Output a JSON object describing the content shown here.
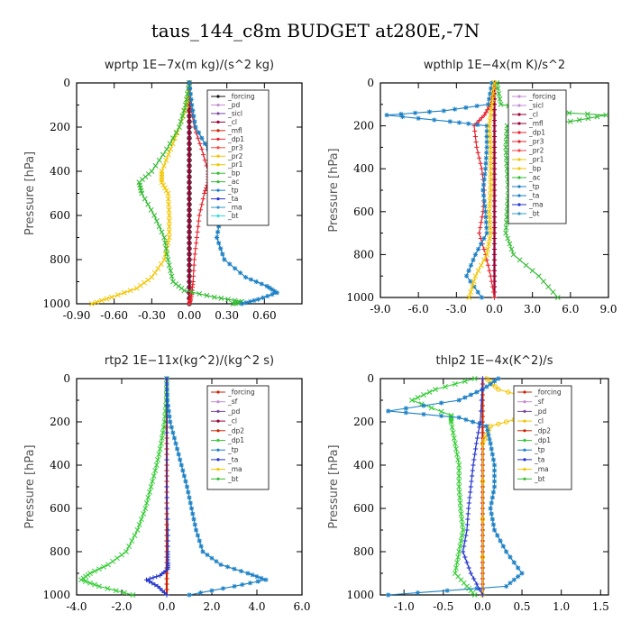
{
  "figure_title": "taus_144_c8m  BUDGET at280E,-7N",
  "chart_data": [
    {
      "type": "line",
      "title": "wprtp   1E−7x(m kg)/(s^2 kg)",
      "ylabel": "Pressure [hPa]",
      "xlim": [
        -0.9,
        0.9
      ],
      "ylim": [
        1000,
        0
      ],
      "xticks": [
        "-0.90",
        "-0.60",
        "-0.30",
        "0.00",
        "0.30",
        "0.60"
      ],
      "xtick_values": [
        -0.9,
        -0.6,
        -0.3,
        0,
        0.3,
        0.6
      ],
      "yticks": [
        "0",
        "200",
        "400",
        "600",
        "800",
        "1000"
      ],
      "ytick_values": [
        0,
        200,
        400,
        600,
        800,
        1000
      ],
      "legend": [
        "_forcing",
        "_pd",
        "_sicl",
        "_cl",
        "_mfl",
        "_dp1",
        "_pr3",
        "_pr2",
        "_pr1",
        "_bp",
        "_ac",
        "_tp",
        "_ta",
        "_ma",
        "_bt"
      ],
      "series": [
        {
          "name": "_forcing",
          "color": "#111111",
          "marker": "o",
          "x": [
            0,
            0
          ],
          "y": [
            0,
            1000
          ]
        },
        {
          "name": "_cl",
          "color": "#990033",
          "marker": "+",
          "x": [
            0,
            0
          ],
          "y": [
            0,
            1000
          ]
        },
        {
          "name": "_dp1",
          "color": "#e8202c",
          "marker": "+",
          "x": [
            0,
            0.01,
            0.04,
            0.1,
            0.15,
            0.15,
            0.12,
            0.08,
            0.06,
            0.04,
            0.03,
            0.02,
            0.01,
            0.0
          ],
          "y": [
            0,
            100,
            200,
            300,
            400,
            450,
            500,
            600,
            700,
            800,
            900,
            950,
            980,
            1000
          ]
        },
        {
          "name": "_pr1",
          "color": "#f2c500",
          "marker": "x",
          "x": [
            0,
            -0.02,
            -0.08,
            -0.15,
            -0.22,
            -0.22,
            -0.17,
            -0.16,
            -0.16,
            -0.2,
            -0.3,
            -0.42,
            -0.62,
            -0.78
          ],
          "y": [
            0,
            100,
            200,
            300,
            400,
            450,
            500,
            600,
            700,
            800,
            880,
            930,
            970,
            1000
          ]
        },
        {
          "name": "_ac",
          "color": "#33bb33",
          "marker": "x",
          "x": [
            0,
            -0.03,
            -0.08,
            -0.18,
            -0.3,
            -0.4,
            -0.38,
            -0.28,
            -0.2,
            -0.17,
            -0.13,
            -0.04,
            0.2,
            0.42,
            0.35
          ],
          "y": [
            0,
            100,
            200,
            300,
            400,
            450,
            500,
            600,
            700,
            800,
            900,
            940,
            970,
            990,
            1000
          ]
        },
        {
          "name": "_tp",
          "color": "#1a7fc4",
          "marker": "*",
          "x": [
            0,
            0.02,
            0.05,
            0.15,
            0.28,
            0.34,
            0.33,
            0.25,
            0.22,
            0.28,
            0.45,
            0.62,
            0.7,
            0.55,
            0.42
          ],
          "y": [
            0,
            100,
            200,
            300,
            400,
            450,
            500,
            600,
            700,
            800,
            880,
            920,
            950,
            980,
            1000
          ]
        }
      ]
    },
    {
      "type": "line",
      "title": "wpthlp   1E−4x(m K)/s^2",
      "ylabel": "Pressure [hPa]",
      "xlim": [
        -9,
        9
      ],
      "ylim": [
        1000,
        0
      ],
      "xticks": [
        "-9.0",
        "-6.0",
        "-3.0",
        "0.0",
        "3.0",
        "6.0",
        "9.0"
      ],
      "xtick_values": [
        -9,
        -6,
        -3,
        0,
        3,
        6,
        9
      ],
      "yticks": [
        "0",
        "200",
        "400",
        "600",
        "800",
        "1000"
      ],
      "ytick_values": [
        0,
        200,
        400,
        600,
        800,
        1000
      ],
      "legend": [
        "_forcing",
        "_sicl",
        "_cl",
        "_mfl",
        "_dp1",
        "_pr3",
        "_pr2",
        "_pr1",
        "_bp",
        "_ac",
        "_tp",
        "_ta",
        "_ma",
        "_bt"
      ],
      "series": [
        {
          "name": "_forcing",
          "color": "#c58bd6",
          "marker": "+",
          "x": [
            0,
            0
          ],
          "y": [
            0,
            1000
          ]
        },
        {
          "name": "_cl",
          "color": "#990033",
          "marker": "+",
          "x": [
            0,
            0
          ],
          "y": [
            0,
            1000
          ]
        },
        {
          "name": "_dp1",
          "color": "#e8202c",
          "marker": "+",
          "x": [
            0,
            -0.3,
            -0.8,
            -1.6,
            -1.4,
            -1.0,
            -0.8,
            -0.9,
            -1.2,
            -0.7,
            -0.3,
            0
          ],
          "y": [
            0,
            100,
            150,
            200,
            300,
            400,
            500,
            600,
            700,
            800,
            900,
            1000
          ]
        },
        {
          "name": "_ac",
          "color": "#33bb33",
          "marker": "x",
          "x": [
            0.2,
            0.5,
            3.0,
            8.8,
            6.0,
            1.0,
            0.9,
            1.0,
            1.1,
            1.0,
            0.9,
            1.5,
            3.5,
            5.0
          ],
          "y": [
            0,
            100,
            130,
            150,
            180,
            200,
            300,
            400,
            500,
            600,
            700,
            800,
            900,
            1000
          ]
        },
        {
          "name": "_tp",
          "color": "#1a7fc4",
          "marker": "*",
          "x": [
            -0.2,
            -0.5,
            -4.0,
            -8.5,
            -3.5,
            -0.6,
            -0.6,
            -0.7,
            -0.9,
            -0.7,
            -0.6,
            -1.5,
            -2.2,
            -1.0
          ],
          "y": [
            0,
            100,
            130,
            150,
            180,
            200,
            300,
            400,
            500,
            600,
            700,
            800,
            900,
            1000
          ]
        },
        {
          "name": "_pr1",
          "color": "#f2c500",
          "marker": "x",
          "x": [
            0,
            -0.2,
            -0.4,
            -0.3,
            -0.3,
            -0.3,
            -0.4,
            -0.3,
            -0.6,
            -1.5,
            -2.0
          ],
          "y": [
            0,
            100,
            200,
            300,
            400,
            500,
            600,
            700,
            800,
            900,
            1000
          ]
        }
      ]
    },
    {
      "type": "line",
      "title": "rtp2   1E−11x(kg^2)/(kg^2 s)",
      "ylabel": "Pressure [hPa]",
      "xlim": [
        -4,
        6
      ],
      "ylim": [
        1000,
        0
      ],
      "xticks": [
        "-4.0",
        "-2.0",
        "0.0",
        "2.0",
        "4.0",
        "6.0"
      ],
      "xtick_values": [
        -4,
        -2,
        0,
        2,
        4,
        6
      ],
      "yticks": [
        "0",
        "200",
        "400",
        "600",
        "800",
        "1000"
      ],
      "ytick_values": [
        0,
        200,
        400,
        600,
        800,
        1000
      ],
      "legend": [
        "_forcing",
        "_sf",
        "_pd",
        "_cl",
        "_dp2",
        "_dp1",
        "_tp",
        "_ta",
        "_ma",
        "_bt"
      ],
      "series": [
        {
          "name": "_forcing",
          "color": "#cc2200",
          "marker": "+",
          "x": [
            0,
            0
          ],
          "y": [
            0,
            1000
          ]
        },
        {
          "name": "_dp1",
          "color": "#33cc33",
          "marker": "x",
          "x": [
            0,
            -0.02,
            -0.1,
            -0.25,
            -0.45,
            -0.7,
            -0.95,
            -1.3,
            -1.8,
            -2.6,
            -3.4,
            -3.8,
            -3.0,
            -1.5
          ],
          "y": [
            0,
            100,
            200,
            300,
            400,
            500,
            600,
            700,
            800,
            860,
            900,
            930,
            960,
            1000
          ]
        },
        {
          "name": "_tp",
          "color": "#1a7fc4",
          "marker": "*",
          "x": [
            0,
            0.03,
            0.15,
            0.4,
            0.65,
            0.9,
            1.1,
            1.3,
            1.6,
            2.4,
            3.6,
            4.4,
            3.0,
            1.0
          ],
          "y": [
            0,
            100,
            200,
            300,
            400,
            500,
            600,
            700,
            800,
            860,
            900,
            930,
            960,
            1000
          ]
        },
        {
          "name": "_ta",
          "color": "#2233cc",
          "marker": "+",
          "x": [
            0,
            0,
            0.05,
            0.05,
            0.05,
            0.05,
            -0.3,
            -0.9,
            -0.4,
            0
          ],
          "y": [
            0,
            500,
            700,
            800,
            850,
            880,
            910,
            930,
            960,
            1000
          ]
        }
      ]
    },
    {
      "type": "line",
      "title": "thlp2   1E−4x(K^2)/s",
      "ylabel": "Pressure [hPa]",
      "xlim": [
        -1.3,
        1.6
      ],
      "ylim": [
        1000,
        0
      ],
      "xticks": [
        "-1.0",
        "-0.5",
        "0.0",
        "0.5",
        "1.0",
        "1.5"
      ],
      "xtick_values": [
        -1,
        -0.5,
        0,
        0.5,
        1,
        1.5
      ],
      "yticks": [
        "0",
        "200",
        "400",
        "600",
        "800",
        "1000"
      ],
      "ytick_values": [
        0,
        200,
        400,
        600,
        800,
        1000
      ],
      "legend": [
        "_forcing",
        "_sf",
        "_pd",
        "_cl",
        "_dp2",
        "_dp1",
        "_tp",
        "_ta",
        "_ma",
        "_bt"
      ],
      "series": [
        {
          "name": "_forcing",
          "color": "#cc2200",
          "marker": "+",
          "x": [
            0,
            0
          ],
          "y": [
            0,
            1000
          ]
        },
        {
          "name": "_cl",
          "color": "#f2c500",
          "marker": "o",
          "x": [
            0.05,
            0.2,
            0.7,
            0.75,
            0.5,
            0.1,
            0.0,
            0.0
          ],
          "y": [
            0,
            50,
            100,
            150,
            180,
            220,
            300,
            1000
          ]
        },
        {
          "name": "_dp1",
          "color": "#33cc33",
          "marker": "x",
          "x": [
            -0.1,
            -0.6,
            -0.9,
            -0.4,
            -0.4,
            -0.35,
            -0.3,
            -0.3,
            -0.28,
            -0.25,
            -0.3,
            -0.35,
            -0.2,
            -0.1
          ],
          "y": [
            0,
            50,
            100,
            170,
            200,
            300,
            400,
            500,
            600,
            700,
            800,
            900,
            960,
            1000
          ]
        },
        {
          "name": "_tp",
          "color": "#1a7fc4",
          "marker": "*",
          "x": [
            0.2,
            0.0,
            -0.3,
            -1.2,
            -0.3,
            0.05,
            0.1,
            0.15,
            0.15,
            0.1,
            0.15,
            0.3,
            0.5,
            0.3,
            -1.2
          ],
          "y": [
            0,
            50,
            100,
            150,
            180,
            220,
            300,
            400,
            500,
            600,
            700,
            800,
            900,
            960,
            1000
          ]
        },
        {
          "name": "_ta",
          "color": "#2233cc",
          "marker": "+",
          "x": [
            0,
            -0.03,
            -0.08,
            -0.12,
            -0.15,
            -0.18,
            -0.2,
            -0.25,
            -0.15,
            0
          ],
          "y": [
            0,
            200,
            300,
            400,
            500,
            600,
            700,
            800,
            900,
            1000
          ]
        }
      ]
    }
  ]
}
